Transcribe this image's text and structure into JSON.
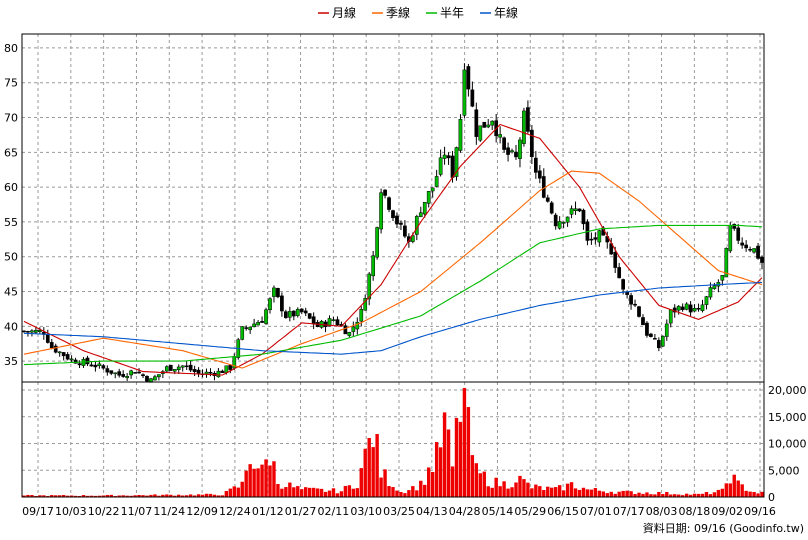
{
  "chart_data": {
    "type": "candlestick",
    "legend": [
      {
        "name": "月線",
        "color": "#cc0000"
      },
      {
        "name": "季線",
        "color": "#ff6600"
      },
      {
        "name": "半年",
        "color": "#00bb00"
      },
      {
        "name": "年線",
        "color": "#0055cc"
      }
    ],
    "legend_position": "top-center",
    "grid": true,
    "price_axis": {
      "ticks": [
        35,
        40,
        45,
        50,
        55,
        60,
        65,
        70,
        75,
        80
      ],
      "range": [
        32,
        82
      ]
    },
    "volume_axis": {
      "ticks": [
        0,
        5000,
        10000,
        15000,
        20000
      ],
      "tick_labels": [
        "0",
        "5,000",
        "10,000",
        "15,000",
        "20,000"
      ],
      "range": [
        0,
        21500
      ]
    },
    "x_labels": [
      "09/17",
      "10/03",
      "10/22",
      "11/07",
      "11/24",
      "12/09",
      "12/24",
      "01/12",
      "01/27",
      "02/11",
      "03/10",
      "03/25",
      "04/13",
      "04/28",
      "05/14",
      "05/29",
      "06/15",
      "07/01",
      "07/17",
      "08/03",
      "08/18",
      "09/02",
      "09/16"
    ],
    "close_anchors": [
      [
        0,
        39.3
      ],
      [
        5,
        39.2
      ],
      [
        7,
        37.0
      ],
      [
        12,
        35.2
      ],
      [
        18,
        34.4
      ],
      [
        24,
        33.0
      ],
      [
        28,
        33.6
      ],
      [
        32,
        32.2
      ],
      [
        36,
        34.0
      ],
      [
        40,
        34.3
      ],
      [
        44,
        33.2
      ],
      [
        49,
        33.4
      ],
      [
        52,
        34.1
      ],
      [
        55,
        39.5
      ],
      [
        60,
        41.0
      ],
      [
        63,
        45.0
      ],
      [
        66,
        41.5
      ],
      [
        70,
        42.0
      ],
      [
        74,
        40.0
      ],
      [
        78,
        41.0
      ],
      [
        82,
        39.0
      ],
      [
        85,
        42.0
      ],
      [
        88,
        50.0
      ],
      [
        90,
        60.0
      ],
      [
        94,
        55.0
      ],
      [
        97,
        52.0
      ],
      [
        100,
        57.0
      ],
      [
        103,
        60.0
      ],
      [
        106,
        65.0
      ],
      [
        108,
        62.0
      ],
      [
        110,
        70.0
      ],
      [
        111,
        78.0
      ],
      [
        114,
        68.0
      ],
      [
        118,
        70.0
      ],
      [
        121,
        65.0
      ],
      [
        124,
        64.0
      ],
      [
        126,
        70.0
      ],
      [
        129,
        62.0
      ],
      [
        132,
        58.0
      ],
      [
        134,
        55.0
      ],
      [
        137,
        56.0
      ],
      [
        140,
        57.0
      ],
      [
        142,
        52.0
      ],
      [
        145,
        53.0
      ],
      [
        148,
        51.0
      ],
      [
        151,
        45.0
      ],
      [
        154,
        43.0
      ],
      [
        157,
        39.0
      ],
      [
        160,
        37.0
      ],
      [
        163,
        42.0
      ],
      [
        166,
        43.0
      ],
      [
        170,
        42.0
      ],
      [
        173,
        45.0
      ],
      [
        176,
        47.0
      ],
      [
        178,
        54.0
      ],
      [
        181,
        52.0
      ],
      [
        184,
        51.0
      ],
      [
        186,
        49.2
      ]
    ],
    "ma_lines": {
      "月線": [
        [
          0,
          40.7
        ],
        [
          15,
          36.5
        ],
        [
          30,
          33.5
        ],
        [
          50,
          33.0
        ],
        [
          60,
          36.0
        ],
        [
          70,
          40.5
        ],
        [
          80,
          40.0
        ],
        [
          90,
          46.0
        ],
        [
          100,
          55.0
        ],
        [
          110,
          63.0
        ],
        [
          120,
          69.0
        ],
        [
          130,
          67.0
        ],
        [
          140,
          60.0
        ],
        [
          150,
          50.0
        ],
        [
          160,
          43.0
        ],
        [
          170,
          41.0
        ],
        [
          180,
          43.5
        ],
        [
          186,
          47.0
        ]
      ],
      "季線": [
        [
          0,
          36.0
        ],
        [
          20,
          38.3
        ],
        [
          40,
          36.5
        ],
        [
          55,
          34.0
        ],
        [
          70,
          37.5
        ],
        [
          85,
          40.5
        ],
        [
          100,
          45.0
        ],
        [
          115,
          52.0
        ],
        [
          130,
          59.5
        ],
        [
          138,
          62.3
        ],
        [
          145,
          62.0
        ],
        [
          155,
          58.0
        ],
        [
          165,
          53.0
        ],
        [
          175,
          48.0
        ],
        [
          186,
          46.0
        ]
      ],
      "半年": [
        [
          0,
          34.5
        ],
        [
          20,
          35.0
        ],
        [
          40,
          35.0
        ],
        [
          60,
          36.0
        ],
        [
          80,
          38.0
        ],
        [
          100,
          41.5
        ],
        [
          115,
          46.5
        ],
        [
          130,
          52.0
        ],
        [
          145,
          54.0
        ],
        [
          160,
          54.5
        ],
        [
          180,
          54.5
        ],
        [
          186,
          54.3
        ]
      ],
      "年線": [
        [
          0,
          39.0
        ],
        [
          20,
          38.5
        ],
        [
          40,
          37.5
        ],
        [
          60,
          36.5
        ],
        [
          80,
          36.0
        ],
        [
          90,
          36.5
        ],
        [
          100,
          38.5
        ],
        [
          115,
          41.0
        ],
        [
          130,
          43.0
        ],
        [
          145,
          44.5
        ],
        [
          160,
          45.5
        ],
        [
          175,
          46.0
        ],
        [
          186,
          46.3
        ]
      ]
    },
    "volume_anchors": [
      [
        0,
        300
      ],
      [
        20,
        300
      ],
      [
        50,
        500
      ],
      [
        55,
        2500
      ],
      [
        57,
        8500
      ],
      [
        60,
        5000
      ],
      [
        62,
        9000
      ],
      [
        64,
        3000
      ],
      [
        70,
        1500
      ],
      [
        80,
        1200
      ],
      [
        84,
        3000
      ],
      [
        86,
        8000
      ],
      [
        88,
        13500
      ],
      [
        90,
        5000
      ],
      [
        95,
        1000
      ],
      [
        100,
        2500
      ],
      [
        104,
        8000
      ],
      [
        106,
        14500
      ],
      [
        108,
        6000
      ],
      [
        110,
        19000
      ],
      [
        111,
        20500
      ],
      [
        112,
        13000
      ],
      [
        114,
        5000
      ],
      [
        118,
        3000
      ],
      [
        122,
        2500
      ],
      [
        124,
        4000
      ],
      [
        128,
        2000
      ],
      [
        134,
        1500
      ],
      [
        138,
        2500
      ],
      [
        142,
        1500
      ],
      [
        150,
        1000
      ],
      [
        160,
        800
      ],
      [
        170,
        500
      ],
      [
        176,
        1200
      ],
      [
        178,
        4500
      ],
      [
        180,
        2500
      ],
      [
        184,
        1000
      ],
      [
        186,
        800
      ]
    ],
    "footer": "資料日期: 09/16 (Goodinfo.tw)"
  },
  "colors": {
    "up_candle": "#00bb00",
    "down_candle": "#111111",
    "volume_bar": "#ee0000",
    "grid": "#9a9a9a",
    "background": "#ffffff"
  }
}
